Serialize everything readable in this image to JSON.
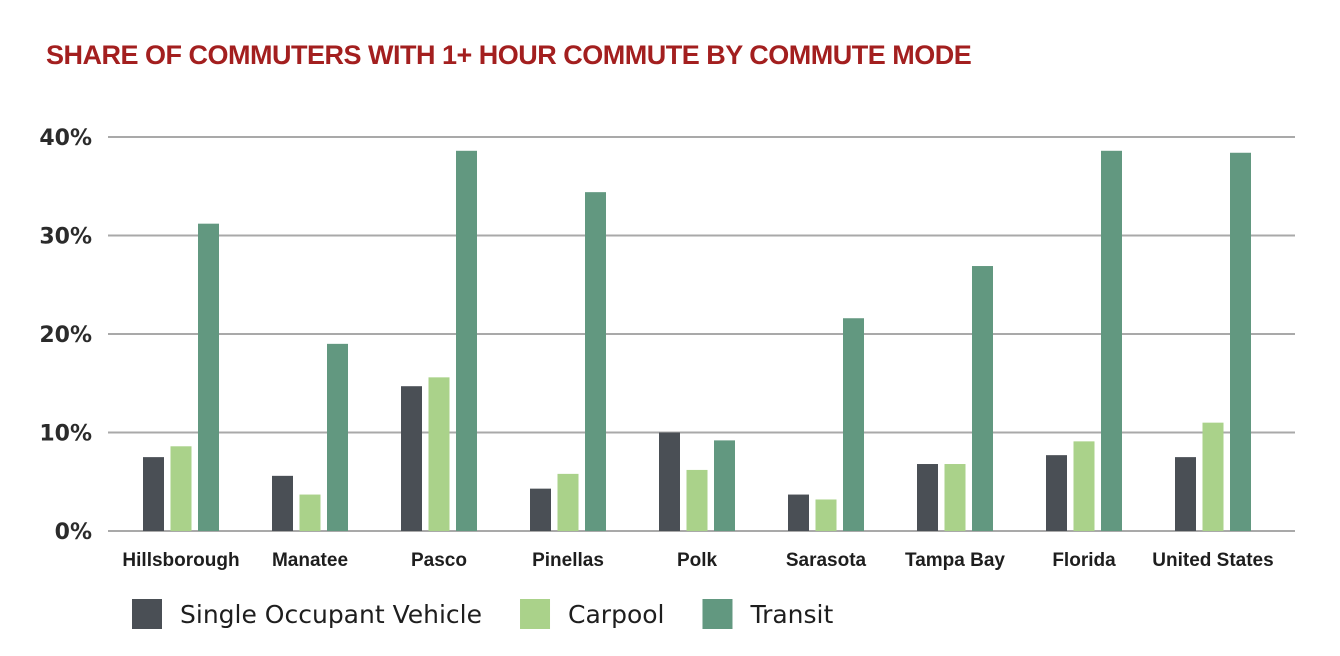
{
  "chart_data": {
    "type": "bar",
    "title": "SHARE OF COMMUTERS WITH 1+ HOUR COMMUTE BY COMMUTE MODE",
    "xlabel": "",
    "ylabel": "",
    "ylim": [
      0,
      40
    ],
    "yticks": [
      0,
      10,
      20,
      30,
      40
    ],
    "ytick_labels": [
      "0%",
      "10%",
      "20%",
      "30%",
      "40%"
    ],
    "grid": true,
    "legend_placement": "bottom-left",
    "categories": [
      "Hillsborough",
      "Manatee",
      "Pasco",
      "Pinellas",
      "Polk",
      "Sarasota",
      "Tampa Bay",
      "Florida",
      "United States"
    ],
    "series": [
      {
        "name": "Single Occupant Vehicle",
        "color": "#4a4f55",
        "values": [
          7.5,
          5.6,
          14.7,
          4.3,
          10.0,
          3.7,
          6.8,
          7.7,
          7.5
        ]
      },
      {
        "name": "Carpool",
        "color": "#aad28a",
        "values": [
          8.6,
          3.7,
          15.6,
          5.8,
          6.2,
          3.2,
          6.8,
          9.1,
          11.0
        ]
      },
      {
        "name": "Transit",
        "color": "#629880",
        "values": [
          31.2,
          19.0,
          38.6,
          34.4,
          9.2,
          21.6,
          26.9,
          38.6,
          38.4
        ]
      }
    ]
  }
}
